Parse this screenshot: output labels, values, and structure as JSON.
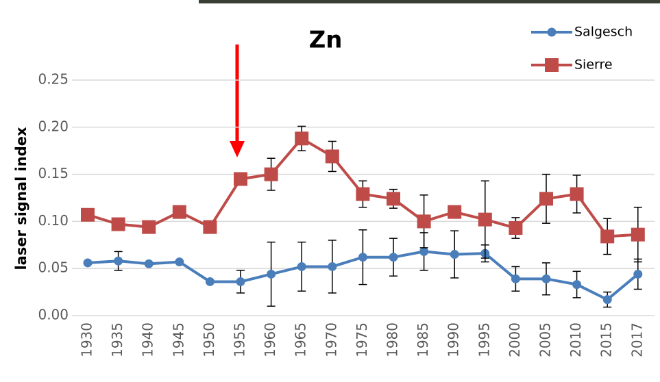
{
  "chart_data": {
    "type": "line",
    "title": "Zn",
    "ylabel": "laser signal index",
    "categories": [
      "1930",
      "1935",
      "1940",
      "1945",
      "1950",
      "1955",
      "1960",
      "1965",
      "1970",
      "1975",
      "1980",
      "1985",
      "1990",
      "1995",
      "2000",
      "2005",
      "2010",
      "2015",
      "2017"
    ],
    "series": [
      {
        "name": "Salgesch",
        "color": "#4a7ebb",
        "marker": "circle",
        "values": [
          0.056,
          0.058,
          0.055,
          0.057,
          0.036,
          0.036,
          0.044,
          0.052,
          0.052,
          0.062,
          0.062,
          0.068,
          0.065,
          0.066,
          0.039,
          0.039,
          0.033,
          0.017,
          0.044
        ],
        "errors": [
          0,
          0.01,
          0,
          0,
          0,
          0.012,
          0.034,
          0.026,
          0.028,
          0.029,
          0.02,
          0.02,
          0.025,
          0.009,
          0.013,
          0.017,
          0.014,
          0.008,
          0.016
        ]
      },
      {
        "name": "Sierre",
        "color": "#be4b48",
        "marker": "square",
        "values": [
          0.107,
          0.097,
          0.094,
          0.11,
          0.094,
          0.145,
          0.15,
          0.188,
          0.169,
          0.129,
          0.124,
          0.1,
          0.11,
          0.102,
          0.093,
          0.124,
          0.129,
          0.084,
          0.086
        ],
        "errors": [
          0,
          0,
          0,
          0,
          0,
          0,
          0.017,
          0.013,
          0.016,
          0.014,
          0.01,
          0.028,
          0,
          0.041,
          0.011,
          0.026,
          0.02,
          0.019,
          0.029
        ]
      }
    ],
    "ylim": [
      0,
      0.25
    ],
    "yticks": [
      {
        "value": 0,
        "label": "0.00"
      },
      {
        "value": 0.05,
        "label": "0.05"
      },
      {
        "value": 0.1,
        "label": "0.10"
      },
      {
        "value": 0.15,
        "label": "0.15"
      },
      {
        "value": 0.2,
        "label": "0.20"
      },
      {
        "value": 0.25,
        "label": "0.25"
      }
    ],
    "grid": true,
    "legend": "top-right"
  }
}
